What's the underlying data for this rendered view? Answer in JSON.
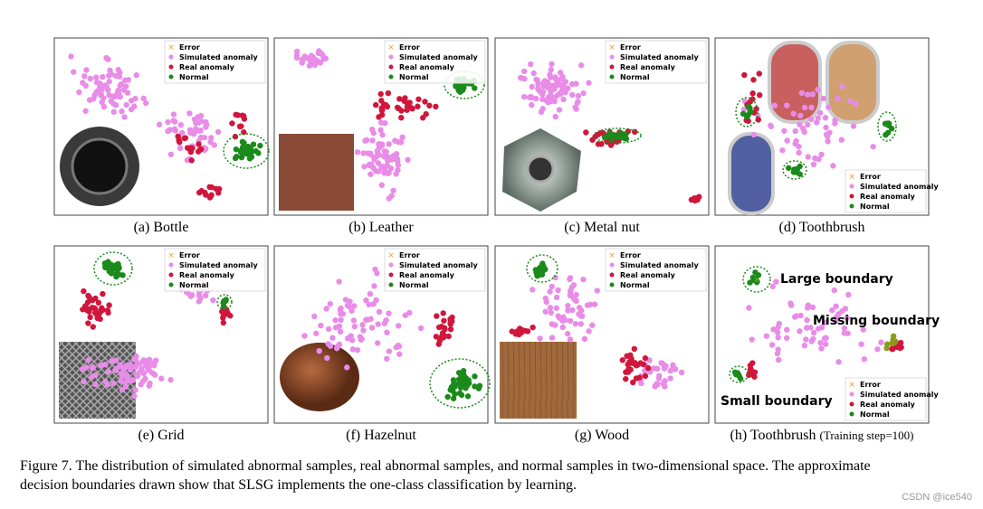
{
  "panels": [
    {
      "caption": "(a) Bottle"
    },
    {
      "caption": "(b) Leather"
    },
    {
      "caption": "(c) Metal nut"
    },
    {
      "caption": "(d) Toothbrush"
    },
    {
      "caption": "(e) Grid"
    },
    {
      "caption": "(f) Hazelnut"
    },
    {
      "caption": "(g) Wood"
    },
    {
      "caption": "(h) Toothbrush",
      "caption_note": "(Training step=100)",
      "annotations": [
        "Large boundary",
        "Missing boundary",
        "Small boundary"
      ]
    }
  ],
  "legend": [
    "Error",
    "Simulated anomaly",
    "Real anomaly",
    "Normal"
  ],
  "figure_caption": [
    "Figure 7. The distribution of simulated abnormal samples, real abnormal samples, and normal samples in two-dimensional space. The approximate",
    "decision boundaries drawn show that SLSG implements the one-class classification by learning."
  ],
  "watermark": "CSDN @ice540"
}
